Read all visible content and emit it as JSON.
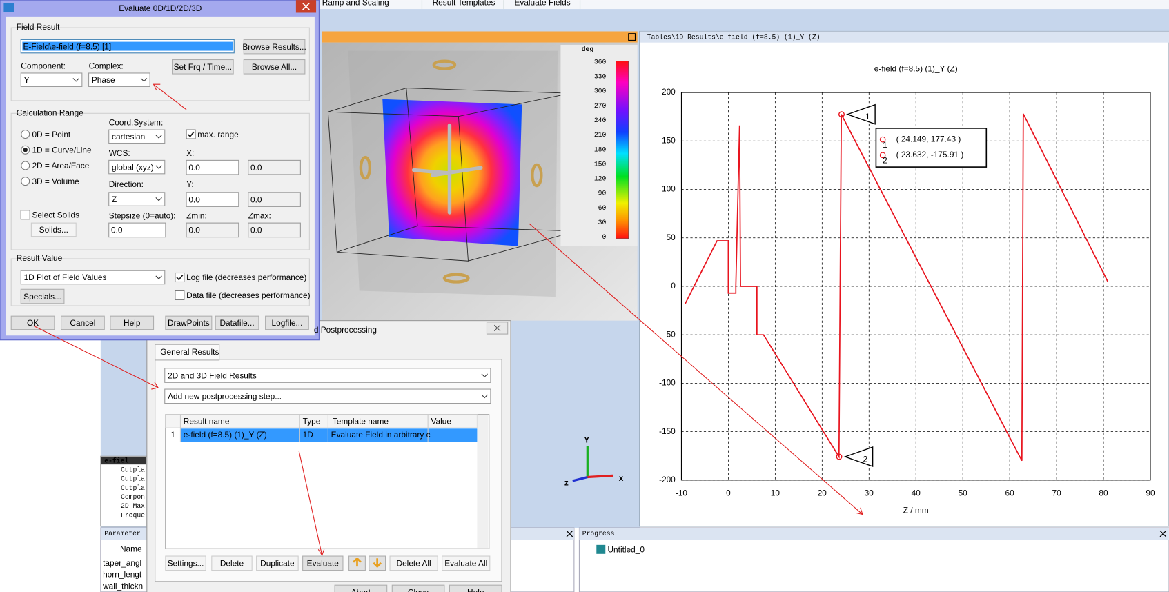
{
  "toolbar_tabs": [
    "Ramp and Scaling",
    "Result Templates",
    "Evaluate Fields"
  ],
  "evaluate_dialog": {
    "title": "Evaluate 0D/1D/2D/3D",
    "field_result": {
      "group": "Field Result",
      "value": "E-Field\\e-field (f=8.5) [1]",
      "browse_results": "Browse Results...",
      "component_label": "Component:",
      "component": "Y",
      "complex_label": "Complex:",
      "complex": "Phase",
      "set_frq_time": "Set Frq / Time...",
      "browse_all": "Browse All..."
    },
    "calculation_range": {
      "group": "Calculation Range",
      "options": [
        "0D = Point",
        "1D = Curve/Line",
        "2D = Area/Face",
        "3D = Volume"
      ],
      "coord_system_label": "Coord.System:",
      "coord_system": "cartesian",
      "max_range": "max. range",
      "wcs_label": "WCS:",
      "wcs": "global (xyz)",
      "direction_label": "Direction:",
      "direction": "Z",
      "x_label": "X:",
      "x": "0.0",
      "x_max": "0.0",
      "y_label": "Y:",
      "y": "0.0",
      "y_max": "0.0",
      "select_solids": "Select Solids",
      "solids": "Solids...",
      "stepsize_label": "Stepsize (0=auto):",
      "stepsize": "0.0",
      "zmin_label": "Zmin:",
      "zmin": "0.0",
      "zmax_label": "Zmax:",
      "zmax": "0.0"
    },
    "result_value": {
      "group": "Result Value",
      "plot": "1D Plot of Field Values",
      "specials": "Specials...",
      "log_file": "Log file (decreases performance)",
      "data_file": "Data file (decreases performance)"
    },
    "buttons": [
      "OK",
      "Cancel",
      "Help",
      "DrawPoints",
      "Datafile...",
      "Logfile..."
    ]
  },
  "view_3d": {
    "legend_unit": "deg",
    "legend_ticks": [
      "360",
      "330",
      "300",
      "270",
      "240",
      "210",
      "180",
      "150",
      "120",
      "90",
      "60",
      "30",
      "0"
    ]
  },
  "plot_window": {
    "title": "Tables\\1D Results\\e-field (f=8.5) (1)_Y (Z)"
  },
  "chart_data": {
    "type": "line",
    "title": "e-field (f=8.5) (1)_Y (Z)",
    "x_label": "Z / mm",
    "xlim": [
      -10,
      90
    ],
    "xticks": [
      -10,
      0,
      10,
      20,
      30,
      40,
      50,
      60,
      70,
      80,
      90
    ],
    "ylim": [
      -200,
      200
    ],
    "yticks": [
      -200,
      -150,
      -100,
      -50,
      0,
      50,
      100,
      150,
      200
    ],
    "grid": true,
    "color": "#e8141e",
    "x": [
      -9.2,
      -2.4,
      -0.3,
      0,
      0,
      1.6,
      1.6,
      2.4,
      2.6,
      6.1,
      6.1,
      7.5,
      23.6,
      24.1,
      62.6,
      62.9,
      80.9
    ],
    "values": [
      -18,
      47,
      47,
      47,
      -7,
      -7,
      0,
      166,
      0,
      0,
      -50,
      -50,
      -175.9,
      177.4,
      -180,
      178,
      5
    ],
    "markers": [
      {
        "label": "1",
        "x": 24.149,
        "y": 177.43,
        "readout": "( 24.149, 177.43 )"
      },
      {
        "label": "2",
        "x": 23.632,
        "y": -175.91,
        "readout": "( 23.632, -175.91 )"
      }
    ]
  },
  "postprocessing_dialog": {
    "title": "d Postprocessing",
    "tab": "General Results",
    "result_type": "2D and 3D Field Results",
    "step": "Add new postprocessing step...",
    "table": {
      "headers": [
        "Result name",
        "Type",
        "Template name",
        "Value"
      ],
      "rows": [
        [
          "1",
          "e-field (f=8.5) (1)_Y (Z)",
          "1D",
          "Evaluate Field in arbitrary c",
          ""
        ]
      ]
    },
    "buttons": [
      "Settings...",
      "Delete",
      "Duplicate",
      "Evaluate",
      "Delete All",
      "Evaluate All"
    ],
    "footer_buttons": [
      "Abort",
      "Close",
      "Help"
    ]
  },
  "navigation_tree": [
    "e-fiel",
    "Cutpla",
    "Cutpla",
    "Cutpla",
    "Compon",
    "2D Max",
    "Freque"
  ],
  "parameter_panel": {
    "title": "Parameter",
    "header": "Name",
    "rows": [
      "taper_angl",
      "horn_lengt",
      "wall_thickn"
    ]
  },
  "progress_panel": {
    "title": "Progress",
    "item": "Untitled_0"
  },
  "axes_icon": {
    "y": "Y",
    "x": "x",
    "z": "z"
  }
}
